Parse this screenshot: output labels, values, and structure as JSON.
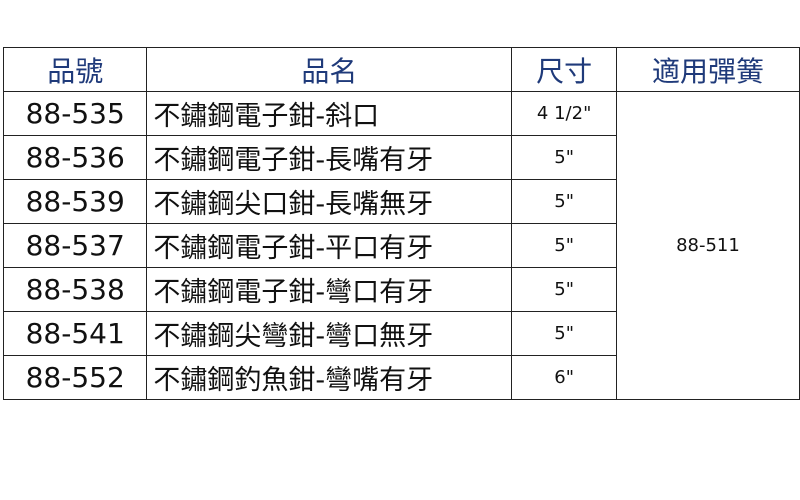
{
  "headers": {
    "code": "品號",
    "name": "品名",
    "size": "尺寸",
    "spring": "適用彈簧"
  },
  "header_color": "#1f3a7a",
  "rows": [
    {
      "code": "88-535",
      "name": "不鏽鋼電子鉗-斜口",
      "size": "4 1/2\""
    },
    {
      "code": "88-536",
      "name": "不鏽鋼電子鉗-長嘴有牙",
      "size": "5\""
    },
    {
      "code": "88-539",
      "name": "不鏽鋼尖口鉗-長嘴無牙",
      "size": "5\""
    },
    {
      "code": "88-537",
      "name": "不鏽鋼電子鉗-平口有牙",
      "size": "5\""
    },
    {
      "code": "88-538",
      "name": "不鏽鋼電子鉗-彎口有牙",
      "size": "5\""
    },
    {
      "code": "88-541",
      "name": "不鏽鋼尖彎鉗-彎口無牙",
      "size": "5\""
    },
    {
      "code": "88-552",
      "name": "不鏽鋼釣魚鉗-彎嘴有牙",
      "size": "6\""
    }
  ],
  "spring": "88-511"
}
